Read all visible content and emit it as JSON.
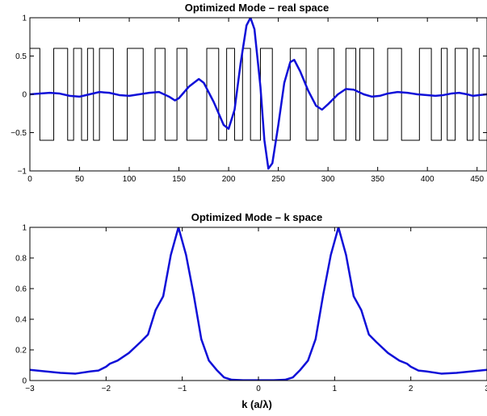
{
  "chart_data": [
    {
      "type": "line",
      "title": "Optimized Mode – real space",
      "xlabel": "",
      "ylabel": "",
      "xlim": [
        0,
        460
      ],
      "ylim": [
        -1,
        1
      ],
      "x_ticks": [
        0,
        50,
        100,
        150,
        200,
        250,
        300,
        350,
        400,
        450
      ],
      "y_ticks": [
        -1,
        -0.5,
        0,
        0.5,
        1
      ],
      "grid": false,
      "series": [
        {
          "color": "#000000",
          "style": "step",
          "line_width": "thin",
          "levels": [
            -0.6,
            0.6
          ],
          "transitions": [
            0,
            10,
            24,
            38,
            44,
            52,
            58,
            64,
            70,
            84,
            98,
            114,
            126,
            136,
            148,
            158,
            178,
            190,
            198,
            206,
            214,
            222,
            232,
            244,
            262,
            278,
            290,
            306,
            318,
            328,
            332,
            346,
            360,
            374,
            392,
            404,
            414,
            420,
            428,
            440,
            446,
            452,
            460
          ],
          "start_level": 0.6
        },
        {
          "color": "#1010d8",
          "style": "line",
          "line_width": "thick",
          "points": [
            [
              0,
              0
            ],
            [
              10,
              0.01
            ],
            [
              20,
              0.02
            ],
            [
              30,
              0.01
            ],
            [
              40,
              -0.02
            ],
            [
              50,
              -0.03
            ],
            [
              60,
              0
            ],
            [
              70,
              0.03
            ],
            [
              80,
              0.02
            ],
            [
              90,
              -0.01
            ],
            [
              100,
              -0.02
            ],
            [
              110,
              0
            ],
            [
              120,
              0.02
            ],
            [
              130,
              0.03
            ],
            [
              140,
              -0.03
            ],
            [
              146,
              -0.08
            ],
            [
              150,
              -0.05
            ],
            [
              160,
              0.1
            ],
            [
              170,
              0.2
            ],
            [
              175,
              0.15
            ],
            [
              185,
              -0.1
            ],
            [
              195,
              -0.4
            ],
            [
              200,
              -0.45
            ],
            [
              206,
              -0.2
            ],
            [
              212,
              0.4
            ],
            [
              218,
              0.9
            ],
            [
              222,
              1.0
            ],
            [
              226,
              0.85
            ],
            [
              232,
              0.1
            ],
            [
              236,
              -0.6
            ],
            [
              240,
              -0.97
            ],
            [
              244,
              -0.9
            ],
            [
              250,
              -0.4
            ],
            [
              256,
              0.15
            ],
            [
              262,
              0.42
            ],
            [
              266,
              0.45
            ],
            [
              272,
              0.3
            ],
            [
              280,
              0.05
            ],
            [
              288,
              -0.15
            ],
            [
              294,
              -0.2
            ],
            [
              300,
              -0.13
            ],
            [
              310,
              0
            ],
            [
              318,
              0.07
            ],
            [
              326,
              0.06
            ],
            [
              336,
              0
            ],
            [
              344,
              -0.03
            ],
            [
              352,
              -0.02
            ],
            [
              360,
              0.01
            ],
            [
              370,
              0.03
            ],
            [
              380,
              0.02
            ],
            [
              390,
              0
            ],
            [
              400,
              -0.01
            ],
            [
              408,
              -0.02
            ],
            [
              416,
              -0.01
            ],
            [
              424,
              0.01
            ],
            [
              432,
              0.02
            ],
            [
              440,
              0
            ],
            [
              446,
              -0.02
            ],
            [
              452,
              -0.01
            ],
            [
              460,
              0
            ]
          ]
        }
      ]
    },
    {
      "type": "line",
      "title": "Optimized Mode – k space",
      "xlabel": "k (a/λ)",
      "ylabel": "",
      "xlim": [
        -3,
        3
      ],
      "ylim": [
        0,
        1
      ],
      "x_ticks": [
        -3,
        -2,
        -1,
        0,
        1,
        2,
        3
      ],
      "x_tick_labels": [
        "−3",
        "−2",
        "−1",
        "0",
        "1",
        "2",
        "3"
      ],
      "y_ticks": [
        0,
        0.2,
        0.4,
        0.6,
        0.8,
        1
      ],
      "grid": false,
      "series": [
        {
          "color": "#1010d8",
          "style": "line",
          "line_width": "thick",
          "points": [
            [
              -3,
              0.07
            ],
            [
              -2.8,
              0.06
            ],
            [
              -2.6,
              0.05
            ],
            [
              -2.4,
              0.045
            ],
            [
              -2.2,
              0.06
            ],
            [
              -2.1,
              0.065
            ],
            [
              -2.0,
              0.09
            ],
            [
              -1.95,
              0.11
            ],
            [
              -1.85,
              0.13
            ],
            [
              -1.7,
              0.18
            ],
            [
              -1.55,
              0.25
            ],
            [
              -1.45,
              0.3
            ],
            [
              -1.35,
              0.46
            ],
            [
              -1.25,
              0.55
            ],
            [
              -1.15,
              0.82
            ],
            [
              -1.05,
              1.0
            ],
            [
              -0.95,
              0.82
            ],
            [
              -0.85,
              0.56
            ],
            [
              -0.75,
              0.27
            ],
            [
              -0.65,
              0.13
            ],
            [
              -0.55,
              0.07
            ],
            [
              -0.45,
              0.02
            ],
            [
              -0.35,
              0.005
            ],
            [
              -0.2,
              0.002
            ],
            [
              0,
              0.002
            ],
            [
              0.2,
              0.002
            ],
            [
              0.35,
              0.005
            ],
            [
              0.45,
              0.02
            ],
            [
              0.55,
              0.07
            ],
            [
              0.65,
              0.13
            ],
            [
              0.75,
              0.27
            ],
            [
              0.85,
              0.56
            ],
            [
              0.95,
              0.82
            ],
            [
              1.05,
              1.0
            ],
            [
              1.15,
              0.82
            ],
            [
              1.25,
              0.55
            ],
            [
              1.35,
              0.46
            ],
            [
              1.45,
              0.3
            ],
            [
              1.55,
              0.25
            ],
            [
              1.7,
              0.18
            ],
            [
              1.85,
              0.13
            ],
            [
              1.95,
              0.11
            ],
            [
              2.0,
              0.09
            ],
            [
              2.1,
              0.065
            ],
            [
              2.2,
              0.06
            ],
            [
              2.4,
              0.045
            ],
            [
              2.6,
              0.05
            ],
            [
              2.8,
              0.06
            ],
            [
              3,
              0.07
            ]
          ]
        }
      ]
    }
  ]
}
